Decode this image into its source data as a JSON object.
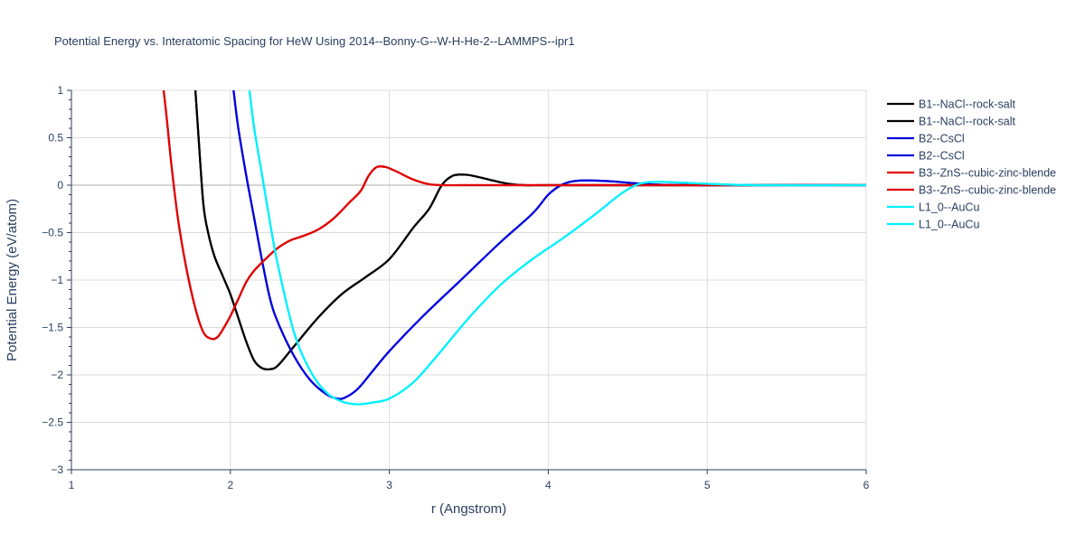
{
  "chart_data": {
    "type": "line",
    "title": "Potential Energy vs. Interatomic Spacing for HeW Using 2014--Bonny-G--W-H-He-2--LAMMPS--ipr1",
    "xlabel": "r (Angstrom)",
    "ylabel": "Potential Energy (eV/atom)",
    "xlim": [
      1,
      6
    ],
    "ylim": [
      -3,
      1
    ],
    "xticks": [
      1,
      2,
      3,
      4,
      5,
      6
    ],
    "xtick_labels": [
      "1",
      "2",
      "3",
      "4",
      "5",
      "6"
    ],
    "yticks": [
      1,
      0.5,
      0,
      -0.5,
      -1,
      -1.5,
      -2,
      -2.5,
      -3
    ],
    "ytick_labels": [
      "1",
      "0.5",
      "0",
      "−0.5",
      "−1",
      "−1.5",
      "−2",
      "−2.5",
      "−3"
    ],
    "legend_position": "top-right",
    "series": [
      {
        "name": "B1--NaCl--rock-salt",
        "color": "#000000",
        "x": [
          1.78,
          1.8,
          1.83,
          1.86,
          1.9,
          1.95,
          2.0,
          2.05,
          2.1,
          2.15,
          2.2,
          2.25,
          2.3,
          2.4,
          2.55,
          2.7,
          2.85,
          3.0,
          3.15,
          3.25,
          3.33,
          3.4,
          3.48,
          3.55,
          3.65,
          3.75,
          3.85,
          4.0,
          4.5,
          5.0,
          6.0
        ],
        "y": [
          1.0,
          0.5,
          -0.2,
          -0.5,
          -0.75,
          -0.95,
          -1.15,
          -1.4,
          -1.65,
          -1.85,
          -1.93,
          -1.94,
          -1.9,
          -1.7,
          -1.4,
          -1.15,
          -0.97,
          -0.78,
          -0.45,
          -0.25,
          0.0,
          0.1,
          0.11,
          0.09,
          0.05,
          0.015,
          0.0,
          0.0,
          0.0,
          0.0,
          0.0
        ]
      },
      {
        "name": "B1--NaCl--rock-salt",
        "color": "#000000",
        "x": [
          1.78,
          1.8,
          1.83,
          1.86,
          1.9,
          1.95,
          2.0,
          2.05,
          2.1,
          2.15,
          2.2,
          2.25,
          2.3,
          2.4,
          2.55,
          2.7,
          2.85,
          3.0,
          3.15,
          3.25,
          3.33,
          3.4,
          3.48,
          3.55,
          3.65,
          3.75,
          3.85,
          4.0,
          4.5,
          5.0,
          6.0
        ],
        "y": [
          1.0,
          0.5,
          -0.2,
          -0.5,
          -0.75,
          -0.95,
          -1.15,
          -1.4,
          -1.65,
          -1.85,
          -1.93,
          -1.94,
          -1.9,
          -1.7,
          -1.4,
          -1.15,
          -0.97,
          -0.78,
          -0.45,
          -0.25,
          0.0,
          0.1,
          0.11,
          0.09,
          0.05,
          0.015,
          0.0,
          0.0,
          0.0,
          0.0,
          0.0
        ]
      },
      {
        "name": "B2--CsCl",
        "color": "#0000dd",
        "x": [
          2.02,
          2.05,
          2.1,
          2.15,
          2.2,
          2.25,
          2.3,
          2.4,
          2.5,
          2.6,
          2.67,
          2.72,
          2.8,
          2.9,
          3.0,
          3.2,
          3.45,
          3.7,
          3.9,
          4.0,
          4.08,
          4.15,
          4.25,
          4.4,
          4.55,
          4.7,
          5.0,
          6.0
        ],
        "y": [
          1.0,
          0.6,
          0.1,
          -0.35,
          -0.8,
          -1.2,
          -1.45,
          -1.8,
          -2.05,
          -2.2,
          -2.25,
          -2.24,
          -2.15,
          -1.95,
          -1.75,
          -1.4,
          -1.0,
          -0.6,
          -0.3,
          -0.1,
          0.0,
          0.04,
          0.05,
          0.04,
          0.02,
          0.005,
          0.0,
          0.0
        ]
      },
      {
        "name": "B2--CsCl",
        "color": "#0000dd",
        "x": [
          2.02,
          2.05,
          2.1,
          2.15,
          2.2,
          2.25,
          2.3,
          2.4,
          2.5,
          2.6,
          2.67,
          2.72,
          2.8,
          2.9,
          3.0,
          3.2,
          3.45,
          3.7,
          3.9,
          4.0,
          4.08,
          4.15,
          4.25,
          4.4,
          4.55,
          4.7,
          5.0,
          6.0
        ],
        "y": [
          1.0,
          0.6,
          0.1,
          -0.35,
          -0.8,
          -1.2,
          -1.45,
          -1.8,
          -2.05,
          -2.2,
          -2.25,
          -2.24,
          -2.15,
          -1.95,
          -1.75,
          -1.4,
          -1.0,
          -0.6,
          -0.3,
          -0.1,
          0.0,
          0.04,
          0.05,
          0.04,
          0.02,
          0.005,
          0.0,
          0.0
        ]
      },
      {
        "name": "B3--ZnS--cubic-zinc-blende",
        "color": "#e00000",
        "x": [
          1.58,
          1.6,
          1.63,
          1.67,
          1.72,
          1.78,
          1.83,
          1.88,
          1.92,
          1.96,
          2.0,
          2.05,
          2.1,
          2.15,
          2.22,
          2.3,
          2.38,
          2.45,
          2.55,
          2.65,
          2.75,
          2.82,
          2.87,
          2.92,
          2.98,
          3.05,
          3.15,
          3.25,
          3.35,
          3.5,
          4.0,
          5.0,
          6.0
        ],
        "y": [
          1.0,
          0.7,
          0.2,
          -0.35,
          -0.85,
          -1.3,
          -1.55,
          -1.62,
          -1.6,
          -1.5,
          -1.38,
          -1.2,
          -1.02,
          -0.9,
          -0.78,
          -0.66,
          -0.58,
          -0.54,
          -0.47,
          -0.35,
          -0.18,
          -0.06,
          0.1,
          0.19,
          0.19,
          0.14,
          0.06,
          0.01,
          0.0,
          0.0,
          0.0,
          0.0,
          0.0
        ]
      },
      {
        "name": "B3--ZnS--cubic-zinc-blende",
        "color": "#e00000",
        "x": [
          1.58,
          1.6,
          1.63,
          1.67,
          1.72,
          1.78,
          1.83,
          1.88,
          1.92,
          1.96,
          2.0,
          2.05,
          2.1,
          2.15,
          2.22,
          2.3,
          2.38,
          2.45,
          2.55,
          2.65,
          2.75,
          2.82,
          2.87,
          2.92,
          2.98,
          3.05,
          3.15,
          3.25,
          3.35,
          3.5,
          4.0,
          5.0,
          6.0
        ],
        "y": [
          1.0,
          0.7,
          0.2,
          -0.35,
          -0.85,
          -1.3,
          -1.55,
          -1.62,
          -1.6,
          -1.5,
          -1.38,
          -1.2,
          -1.02,
          -0.9,
          -0.78,
          -0.66,
          -0.58,
          -0.54,
          -0.47,
          -0.35,
          -0.18,
          -0.06,
          0.1,
          0.19,
          0.19,
          0.14,
          0.06,
          0.01,
          0.0,
          0.0,
          0.0,
          0.0,
          0.0
        ]
      },
      {
        "name": "L1_0--AuCu",
        "color": "#00f0ff",
        "x": [
          2.12,
          2.15,
          2.2,
          2.25,
          2.3,
          2.4,
          2.5,
          2.6,
          2.7,
          2.8,
          2.9,
          3.0,
          3.15,
          3.3,
          3.5,
          3.7,
          3.9,
          4.1,
          4.3,
          4.45,
          4.55,
          4.62,
          4.7,
          4.8,
          5.0,
          5.3,
          6.0
        ],
        "y": [
          1.0,
          0.6,
          0.1,
          -0.4,
          -0.85,
          -1.55,
          -1.95,
          -2.18,
          -2.28,
          -2.31,
          -2.29,
          -2.25,
          -2.08,
          -1.8,
          -1.4,
          -1.05,
          -0.78,
          -0.55,
          -0.3,
          -0.1,
          0.0,
          0.03,
          0.035,
          0.03,
          0.015,
          0.0,
          0.0
        ]
      },
      {
        "name": "L1_0--AuCu",
        "color": "#00f0ff",
        "x": [
          2.12,
          2.15,
          2.2,
          2.25,
          2.3,
          2.4,
          2.5,
          2.6,
          2.7,
          2.8,
          2.9,
          3.0,
          3.15,
          3.3,
          3.5,
          3.7,
          3.9,
          4.1,
          4.3,
          4.45,
          4.55,
          4.62,
          4.7,
          4.8,
          5.0,
          5.3,
          6.0
        ],
        "y": [
          1.0,
          0.6,
          0.1,
          -0.4,
          -0.85,
          -1.55,
          -1.95,
          -2.18,
          -2.28,
          -2.31,
          -2.29,
          -2.25,
          -2.08,
          -1.8,
          -1.4,
          -1.05,
          -0.78,
          -0.55,
          -0.3,
          -0.1,
          0.0,
          0.03,
          0.035,
          0.03,
          0.015,
          0.0,
          0.0
        ]
      }
    ]
  }
}
